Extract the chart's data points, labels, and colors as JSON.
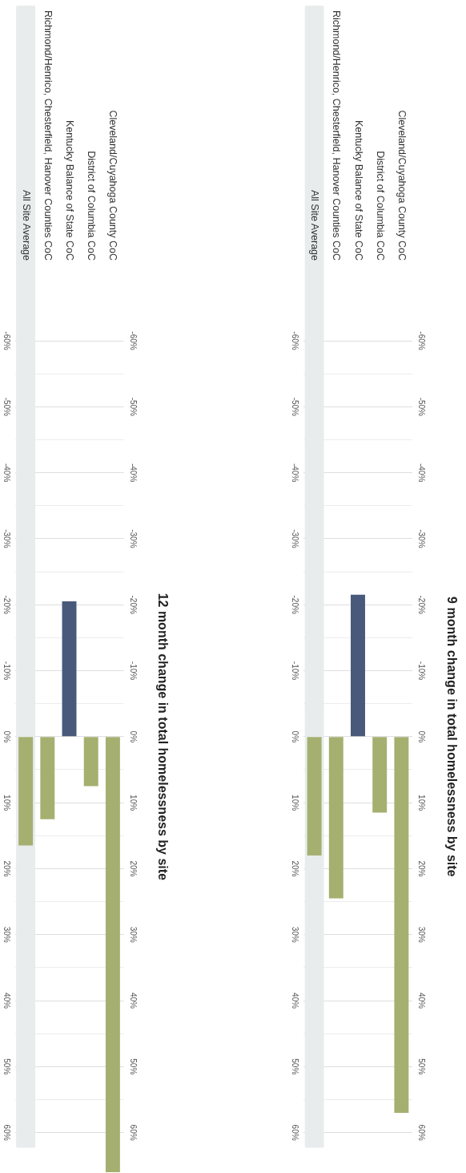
{
  "chart_data": [
    {
      "type": "bar",
      "y2label": "9 month change in total homelessness by site",
      "categories": [
        "All Site Average",
        "Richmond/Henrico, Chesterfield, Hanover Counties CoC",
        "Kentucky Balance of State CoC",
        "District of Columbia CoC",
        "Cleveland/Cuyahoga County CoC"
      ],
      "values": [
        18,
        24.5,
        -21.5,
        11.5,
        57
      ],
      "colors": [
        "#a5b070",
        "#a5b070",
        "#48597c",
        "#a5b070",
        "#a5b070"
      ],
      "ylim": [
        60,
        -60
      ],
      "yticks": [
        {
          "value": -60,
          "label": "-60%"
        },
        {
          "value": -55,
          "label": null
        },
        {
          "value": -50,
          "label": "-50%"
        },
        {
          "value": -45,
          "label": null
        },
        {
          "value": -40,
          "label": "-40%"
        },
        {
          "value": -35,
          "label": null
        },
        {
          "value": -30,
          "label": "-30%"
        },
        {
          "value": -25,
          "label": null
        },
        {
          "value": -20,
          "label": "-20%"
        },
        {
          "value": -15,
          "label": null
        },
        {
          "value": -10,
          "label": "-10%"
        },
        {
          "value": -5,
          "label": null
        },
        {
          "value": 0,
          "label": "0%"
        },
        {
          "value": 5,
          "label": null
        },
        {
          "value": 10,
          "label": "10%"
        },
        {
          "value": 15,
          "label": null
        },
        {
          "value": 20,
          "label": "20%"
        },
        {
          "value": 25,
          "label": null
        },
        {
          "value": 30,
          "label": "30%"
        },
        {
          "value": 35,
          "label": null
        },
        {
          "value": 40,
          "label": "40%"
        },
        {
          "value": 45,
          "label": null
        },
        {
          "value": 50,
          "label": "50%"
        },
        {
          "value": 55,
          "label": null
        },
        {
          "value": 60,
          "label": "60%"
        }
      ],
      "y2lim": [
        60,
        -60
      ],
      "y2ticks": [
        {
          "value": -60,
          "label": "-60%"
        },
        {
          "value": -55,
          "label": null
        },
        {
          "value": -50,
          "label": "-50%"
        },
        {
          "value": -45,
          "label": null
        },
        {
          "value": -40,
          "label": "-40%"
        },
        {
          "value": -35,
          "label": null
        },
        {
          "value": -30,
          "label": "-30%"
        },
        {
          "value": -25,
          "label": null
        },
        {
          "value": -20,
          "label": "-20%"
        },
        {
          "value": -15,
          "label": null
        },
        {
          "value": -10,
          "label": "-10%"
        },
        {
          "value": -5,
          "label": null
        },
        {
          "value": 0,
          "label": "0%"
        },
        {
          "value": 5,
          "label": null
        },
        {
          "value": 10,
          "label": "10%"
        },
        {
          "value": 15,
          "label": null
        },
        {
          "value": 20,
          "label": "20%"
        },
        {
          "value": 25,
          "label": null
        },
        {
          "value": 30,
          "label": "30%"
        },
        {
          "value": 35,
          "label": null
        },
        {
          "value": 40,
          "label": "40%"
        },
        {
          "value": 45,
          "label": null
        },
        {
          "value": 50,
          "label": "50%"
        },
        {
          "value": 55,
          "label": null
        },
        {
          "value": 60,
          "label": "60%"
        }
      ],
      "grid": "y",
      "bands": [
        {
          "axis": "x",
          "from": "All Site Average",
          "to": "All Site Average",
          "color": "#e8ecec"
        }
      ]
    },
    {
      "type": "bar",
      "y2label": "12 month change in total homelessness by site",
      "categories": [
        "All Site Average",
        "Richmond/Henrico, Chesterfield, Hanover Counties CoC",
        "Kentucky Balance of State CoC",
        "District of Columbia CoC",
        "Cleveland/Cuyahoga County CoC"
      ],
      "values": [
        16.5,
        12.5,
        -20.5,
        7.5,
        66
      ],
      "colors": [
        "#a5b070",
        "#a5b070",
        "#48597c",
        "#a5b070",
        "#a5b070"
      ],
      "ylim": [
        66,
        -60
      ],
      "yticks": [
        {
          "value": -60,
          "label": "-60%"
        },
        {
          "value": -55,
          "label": null
        },
        {
          "value": -50,
          "label": "-50%"
        },
        {
          "value": -45,
          "label": null
        },
        {
          "value": -40,
          "label": "-40%"
        },
        {
          "value": -35,
          "label": null
        },
        {
          "value": -30,
          "label": "-30%"
        },
        {
          "value": -25,
          "label": null
        },
        {
          "value": -20,
          "label": "-20%"
        },
        {
          "value": -15,
          "label": null
        },
        {
          "value": -10,
          "label": "-10%"
        },
        {
          "value": -5,
          "label": null
        },
        {
          "value": 0,
          "label": "0%"
        },
        {
          "value": 5,
          "label": null
        },
        {
          "value": 10,
          "label": "10%"
        },
        {
          "value": 15,
          "label": null
        },
        {
          "value": 20,
          "label": "20%"
        },
        {
          "value": 25,
          "label": null
        },
        {
          "value": 30,
          "label": "30%"
        },
        {
          "value": 35,
          "label": null
        },
        {
          "value": 40,
          "label": "40%"
        },
        {
          "value": 45,
          "label": null
        },
        {
          "value": 50,
          "label": "50%"
        },
        {
          "value": 55,
          "label": null
        },
        {
          "value": 60,
          "label": "60%"
        }
      ],
      "y2lim": [
        66,
        -60
      ],
      "y2ticks": [
        {
          "value": -60,
          "label": "-60%"
        },
        {
          "value": -55,
          "label": null
        },
        {
          "value": -50,
          "label": "-50%"
        },
        {
          "value": -45,
          "label": null
        },
        {
          "value": -40,
          "label": "-40%"
        },
        {
          "value": -35,
          "label": null
        },
        {
          "value": -30,
          "label": "-30%"
        },
        {
          "value": -25,
          "label": null
        },
        {
          "value": -20,
          "label": "-20%"
        },
        {
          "value": -15,
          "label": null
        },
        {
          "value": -10,
          "label": "-10%"
        },
        {
          "value": -5,
          "label": null
        },
        {
          "value": 0,
          "label": "0%"
        },
        {
          "value": 5,
          "label": null
        },
        {
          "value": 10,
          "label": "10%"
        },
        {
          "value": 15,
          "label": null
        },
        {
          "value": 20,
          "label": "20%"
        },
        {
          "value": 25,
          "label": null
        },
        {
          "value": 30,
          "label": "30%"
        },
        {
          "value": 35,
          "label": null
        },
        {
          "value": 40,
          "label": "40%"
        },
        {
          "value": 45,
          "label": null
        },
        {
          "value": 50,
          "label": "50%"
        },
        {
          "value": 55,
          "label": null
        },
        {
          "value": 60,
          "label": "60%"
        }
      ],
      "grid": "y",
      "bands": [
        {
          "axis": "x",
          "from": "All Site Average",
          "to": "All Site Average",
          "color": "#e8ecec"
        }
      ]
    }
  ]
}
